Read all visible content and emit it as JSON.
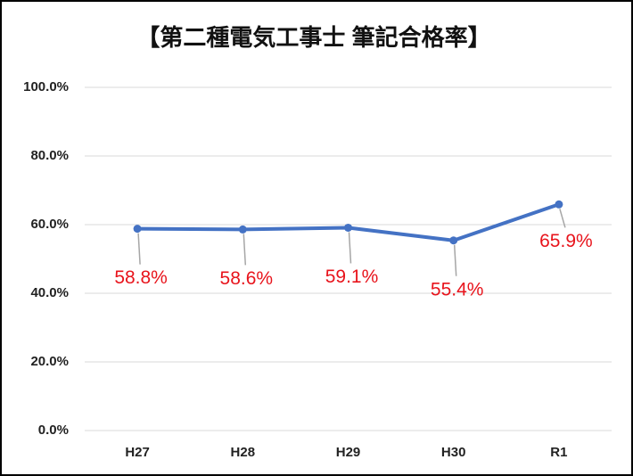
{
  "chart_data": {
    "type": "line",
    "title": "【第二種電気工事士 筆記合格率】",
    "categories": [
      "H27",
      "H28",
      "H29",
      "H30",
      "R1"
    ],
    "series": [
      {
        "color": "#4472c4",
        "values": [
          58.8,
          58.6,
          59.1,
          55.4,
          65.9
        ],
        "value_labels": [
          "58.8%",
          "58.6%",
          "59.1%",
          "55.4%",
          "65.9%"
        ],
        "label_color": "#e8141c"
      }
    ],
    "ylim": [
      0,
      100
    ],
    "yticks": [
      {
        "value": 0,
        "label": "0.0%"
      },
      {
        "value": 20,
        "label": "20.0%"
      },
      {
        "value": 40,
        "label": "40.0%"
      },
      {
        "value": 60,
        "label": "60.0%"
      },
      {
        "value": 80,
        "label": "80.0%"
      },
      {
        "value": 100,
        "label": "100.0%"
      }
    ],
    "grid": true
  }
}
